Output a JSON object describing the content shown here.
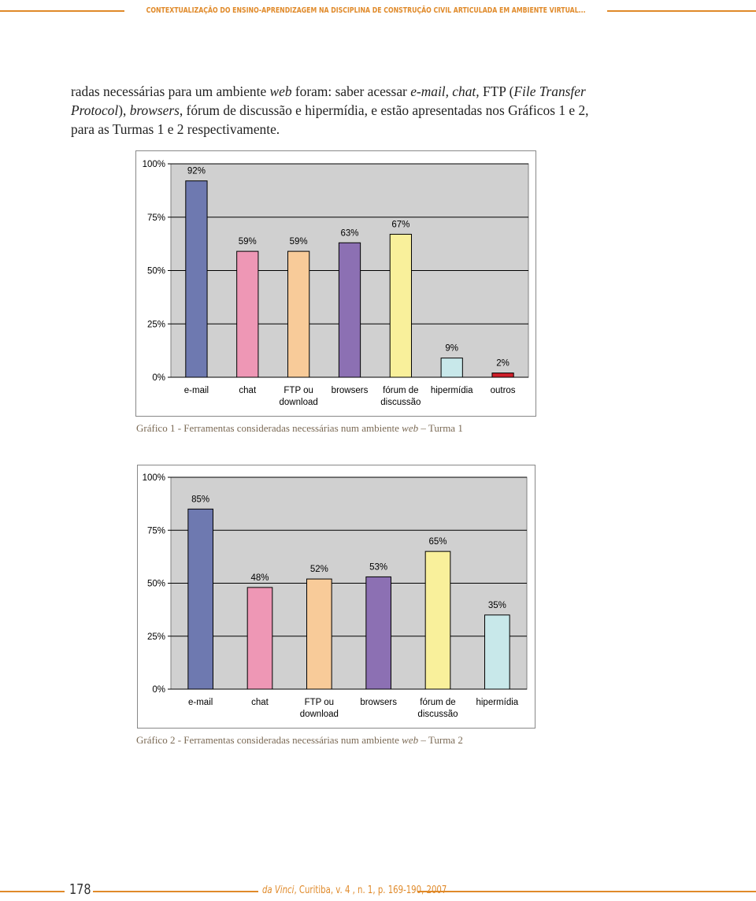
{
  "header": {
    "title": "CONTEXTUALIZAÇÃO DO ENSINO-APRENDIZAGEM NA DISCIPLINA DE CONSTRUÇÃO CIVIL ARTICULADA EM AMBIENTE VIRTUAL..."
  },
  "body": {
    "paragraph": [
      {
        "text": "radas necessárias para um ambiente ",
        "italic": false
      },
      {
        "text": "web",
        "italic": true
      },
      {
        "text": " foram: saber acessar ",
        "italic": false
      },
      {
        "text": "e-mail, chat,",
        "italic": true
      },
      {
        "text": " FTP (",
        "italic": false
      },
      {
        "text": "File Transfer Protocol",
        "italic": true
      },
      {
        "text": "), ",
        "italic": false
      },
      {
        "text": "browsers",
        "italic": true
      },
      {
        "text": ", fórum de discussão e hipermídia, e estão apresentadas nos Gráficos 1 e 2, para as Turmas 1 e 2 respectivamente.",
        "italic": false
      }
    ]
  },
  "chart_data": [
    {
      "type": "bar",
      "categories": [
        "e-mail",
        "chat",
        "FTP ou\ndownload",
        "browsers",
        "fórum de\ndiscussão",
        "hipermídia",
        "outros"
      ],
      "values": [
        92,
        59,
        59,
        63,
        67,
        9,
        2
      ],
      "value_labels": [
        "92%",
        "59%",
        "59%",
        "63%",
        "67%",
        "9%",
        "2%"
      ],
      "colors": [
        "#6e79b0",
        "#ee97b5",
        "#f8cb99",
        "#8c70b3",
        "#f9f09b",
        "#c8e8ea",
        "#cf1f2a"
      ],
      "ylim": [
        0,
        100
      ],
      "yticks": [
        {
          "value": 0,
          "label": "0%"
        },
        {
          "value": 25,
          "label": "25%"
        },
        {
          "value": 50,
          "label": "50%"
        },
        {
          "value": 75,
          "label": "75%"
        },
        {
          "value": 100,
          "label": "100%"
        }
      ],
      "grid": true,
      "caption": [
        {
          "text": "Gráfico 1 - Ferramentas consideradas necessárias num ambiente ",
          "italic": false
        },
        {
          "text": "web",
          "italic": true
        },
        {
          "text": " – Turma 1",
          "italic": false
        }
      ]
    },
    {
      "type": "bar",
      "categories": [
        "e-mail",
        "chat",
        "FTP ou\ndownload",
        "browsers",
        "fórum de\ndiscussão",
        "hipermídia"
      ],
      "values": [
        85,
        48,
        52,
        53,
        65,
        35
      ],
      "value_labels": [
        "85%",
        "48%",
        "52%",
        "53%",
        "65%",
        "35%"
      ],
      "colors": [
        "#6e79b0",
        "#ee97b5",
        "#f8cb99",
        "#8c70b3",
        "#f9f09b",
        "#c8e8ea"
      ],
      "ylim": [
        0,
        100
      ],
      "yticks": [
        {
          "value": 0,
          "label": "0%"
        },
        {
          "value": 25,
          "label": "25%"
        },
        {
          "value": 50,
          "label": "50%"
        },
        {
          "value": 75,
          "label": "75%"
        },
        {
          "value": 100,
          "label": "100%"
        }
      ],
      "grid": true,
      "caption": [
        {
          "text": "Gráfico 2 - Ferramentas consideradas necessárias num ambiente ",
          "italic": false
        },
        {
          "text": "web",
          "italic": true
        },
        {
          "text": " – Turma 2",
          "italic": false
        }
      ]
    }
  ],
  "footer": {
    "page": "178",
    "citation": [
      {
        "text": "da Vinci",
        "italic": true
      },
      {
        "text": ", Curitiba, v. 4 , n. 1, p. 169-190, 2007",
        "italic": false
      }
    ]
  }
}
